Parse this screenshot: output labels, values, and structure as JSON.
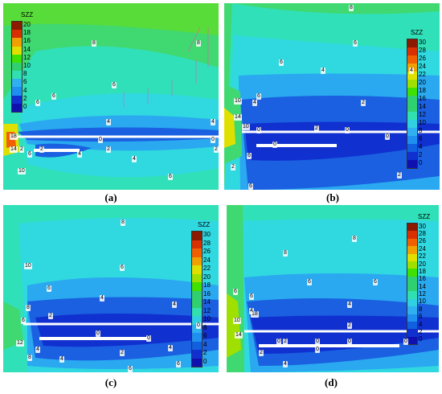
{
  "panels": [
    {
      "caption": "(a)",
      "variable": "SZZ",
      "colorbar_ticks": [
        "20",
        "18",
        "16",
        "14",
        "12",
        "10",
        "8",
        "6",
        "4",
        "2",
        "0"
      ],
      "contour_labels": [
        "8",
        "8",
        "6",
        "6",
        "4",
        "4",
        "2",
        "2",
        "0",
        "0",
        "2",
        "2",
        "4",
        "6",
        "6",
        "10",
        "18",
        "14",
        "6",
        "4"
      ]
    },
    {
      "caption": "(b)",
      "variable": "SZZ",
      "colorbar_ticks": [
        "30",
        "28",
        "26",
        "24",
        "22",
        "20",
        "18",
        "16",
        "14",
        "12",
        "10",
        "8",
        "6",
        "4",
        "2",
        "0"
      ],
      "contour_labels": [
        "8",
        "6",
        "6",
        "4",
        "4",
        "2",
        "2",
        "0",
        "0",
        "0",
        "0",
        "2",
        "4",
        "6",
        "10",
        "14",
        "10",
        "6",
        "6",
        "2"
      ]
    },
    {
      "caption": "(c)",
      "variable": "SZZ",
      "colorbar_ticks": [
        "30",
        "28",
        "26",
        "24",
        "22",
        "20",
        "18",
        "16",
        "14",
        "12",
        "10",
        "8",
        "6",
        "4",
        "2",
        "0"
      ],
      "contour_labels": [
        "8",
        "10",
        "6",
        "6",
        "4",
        "4",
        "2",
        "0",
        "0",
        "0",
        "2",
        "4",
        "6",
        "6",
        "8",
        "12",
        "8",
        "4",
        "4",
        "6"
      ]
    },
    {
      "caption": "(d)",
      "variable": "SZZ",
      "colorbar_ticks": [
        "30",
        "28",
        "26",
        "24",
        "22",
        "20",
        "18",
        "16",
        "14",
        "12",
        "10",
        "8",
        "6",
        "4",
        "2",
        "0"
      ],
      "contour_labels": [
        "8",
        "8",
        "6",
        "6",
        "6",
        "4",
        "4",
        "2",
        "2",
        "0",
        "0",
        "0",
        "0",
        "0",
        "2",
        "4",
        "6",
        "10",
        "14",
        "18"
      ]
    }
  ],
  "colors": {
    "scale_top_to_bottom": [
      "#8b1a00",
      "#d83000",
      "#f06000",
      "#f0a000",
      "#e0e000",
      "#a0e000",
      "#40e000",
      "#30d070",
      "#30e0b0",
      "#30d0e0",
      "#30b0f0",
      "#2090f0",
      "#1060e0",
      "#1030d0",
      "#1010b0"
    ]
  },
  "chart_data": [
    {
      "type": "heatmap",
      "title": "",
      "legend_title": "SZZ",
      "colorbar_range": [
        0,
        20
      ]
    },
    {
      "type": "heatmap",
      "title": "",
      "legend_title": "SZZ",
      "colorbar_range": [
        0,
        30
      ]
    },
    {
      "type": "heatmap",
      "title": "",
      "legend_title": "SZZ",
      "colorbar_range": [
        0,
        30
      ]
    },
    {
      "type": "heatmap",
      "title": "",
      "legend_title": "SZZ",
      "colorbar_range": [
        0,
        30
      ]
    }
  ]
}
